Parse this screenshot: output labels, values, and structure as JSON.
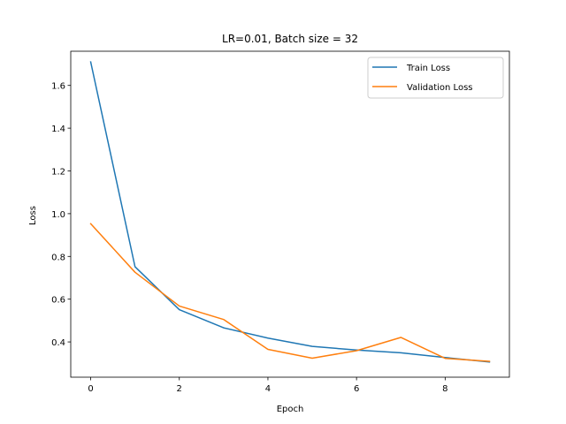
{
  "chart_data": {
    "type": "line",
    "title": "LR=0.01, Batch size = 32",
    "xlabel": "Epoch",
    "ylabel": "Loss",
    "x": [
      0,
      1,
      2,
      3,
      4,
      5,
      6,
      7,
      8,
      9
    ],
    "xlim": [
      -0.45,
      9.45
    ],
    "ylim": [
      0.235,
      1.76
    ],
    "xticks": [
      0,
      2,
      4,
      6,
      8
    ],
    "yticks": [
      0.4,
      0.6,
      0.8,
      1.0,
      1.2,
      1.4,
      1.6
    ],
    "grid": false,
    "legend_position": "top-right",
    "series": [
      {
        "name": "Train Loss",
        "color": "#1f77b4",
        "values": [
          1.71,
          0.752,
          0.551,
          0.466,
          0.418,
          0.379,
          0.362,
          0.349,
          0.327,
          0.306
        ]
      },
      {
        "name": "Validation Loss",
        "color": "#ff7f0e",
        "values": [
          0.953,
          0.726,
          0.568,
          0.505,
          0.365,
          0.324,
          0.359,
          0.421,
          0.323,
          0.309
        ]
      }
    ]
  }
}
